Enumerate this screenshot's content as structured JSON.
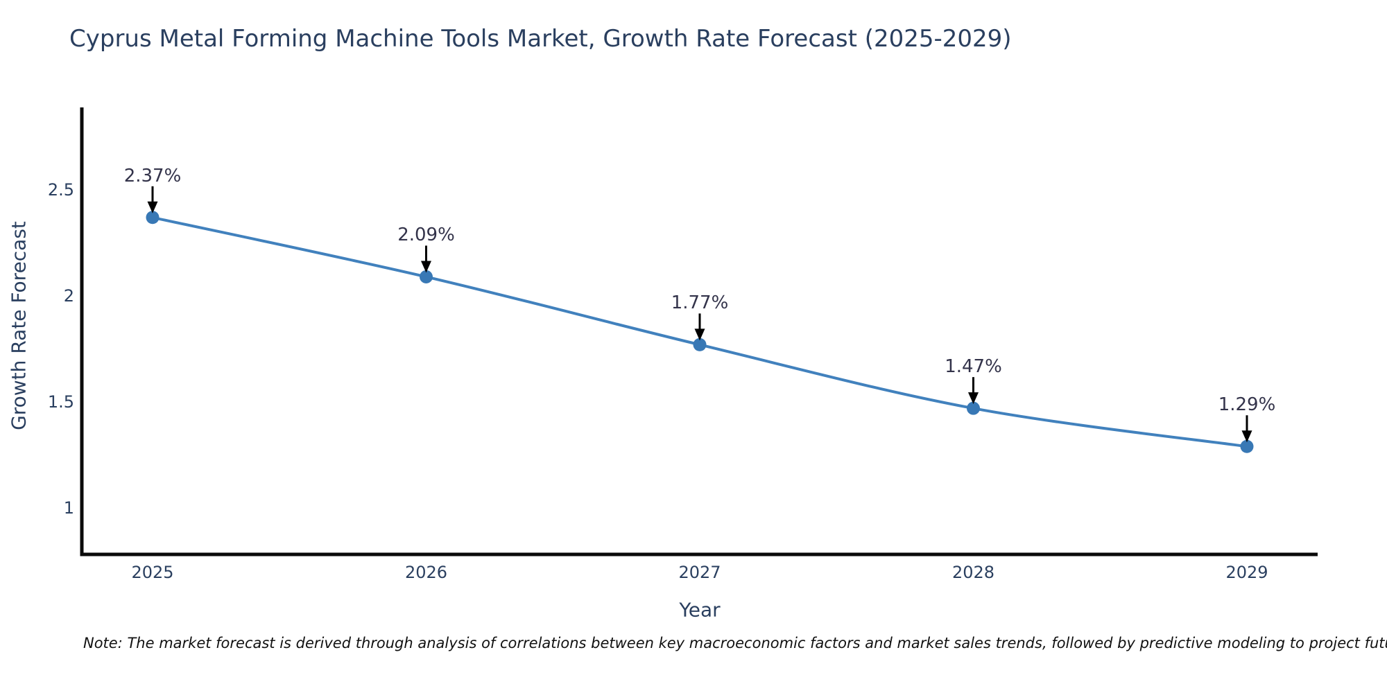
{
  "title": "Cyprus Metal Forming Machine Tools Market, Growth Rate Forecast (2025-2029)",
  "note": "Note: The market forecast is derived through analysis of correlations between key macroeconomic factors and market sales trends, followed by predictive modeling to project future sales",
  "chart_data": {
    "type": "line",
    "title": "Cyprus Metal Forming Machine Tools Market, Growth Rate Forecast (2025-2029)",
    "x": [
      2025,
      2026,
      2027,
      2028,
      2029
    ],
    "values": [
      2.37,
      2.09,
      1.77,
      1.47,
      1.29
    ],
    "point_labels": [
      "2.37%",
      "2.09%",
      "1.77%",
      "1.47%",
      "1.29%"
    ],
    "xlabel": "Year",
    "ylabel": "Growth Rate Forecast",
    "xtick_labels": [
      "2025",
      "2026",
      "2027",
      "2028",
      "2029"
    ],
    "yticks": [
      1,
      1.5,
      2,
      2.5
    ],
    "ytick_labels": [
      "1",
      "1.5",
      "2",
      "2.5"
    ],
    "xlim": [
      2023.95,
      2030.05
    ],
    "ylim": [
      0.78,
      2.88
    ],
    "grid": false,
    "legend": null,
    "smooth": true,
    "colors": {
      "line": "#4181bd",
      "marker": "#3878b5",
      "spine": "#0a0a0a",
      "arrow": "#000000",
      "text": "#2a3f5f",
      "annotation_text": "#33334a"
    }
  }
}
